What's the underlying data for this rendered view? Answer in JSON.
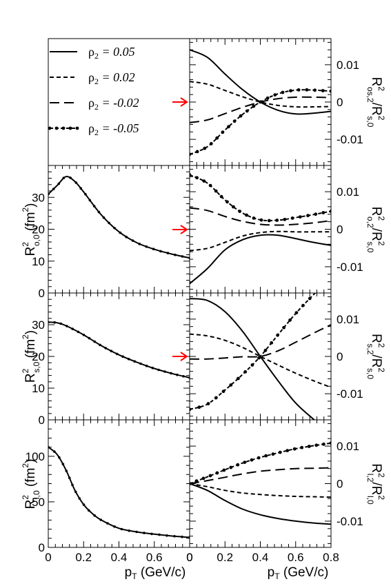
{
  "legend": [
    {
      "label": "ρ",
      "sub": "2",
      "value": " = 0.05",
      "dash": "solid"
    },
    {
      "label": "ρ",
      "sub": "2",
      "value": " = 0.02",
      "dash": "short"
    },
    {
      "label": "ρ",
      "sub": "2",
      "value": " = -0.02",
      "dash": "long"
    },
    {
      "label": "ρ",
      "sub": "2",
      "value": " = -0.05",
      "dash": "dashdot"
    }
  ],
  "xlabel": {
    "main": "p",
    "sub": "T",
    "rest": " (GeV/c)"
  },
  "left_ylabels": [
    {
      "main": "R",
      "sup": "2",
      "sub": "o,0",
      "unit": " (fm",
      "unit_sup": "2",
      "close": ")"
    },
    {
      "main": "R",
      "sup": "2",
      "sub": "s,0",
      "unit": " (fm",
      "unit_sup": "2",
      "close": ")"
    },
    {
      "main": "R",
      "sup": "2",
      "sub": "l,0",
      "unit": " (fm",
      "unit_sup": "2",
      "close": ")"
    }
  ],
  "right_ylabels": [
    {
      "num": "R",
      "num_sup": "2",
      "num_sub": "os,2",
      "den": "/R",
      "den_sup": "2",
      "den_sub": "s,0"
    },
    {
      "num": "R",
      "num_sup": "2",
      "num_sub": "o,2",
      "den": "/R",
      "den_sup": "2",
      "den_sub": "s,0"
    },
    {
      "num": "R",
      "num_sup": "2",
      "num_sub": "s,2",
      "den": "/R",
      "den_sup": "2",
      "den_sub": "s,0"
    },
    {
      "num": "R",
      "num_sup": "2",
      "num_sub": "l,2",
      "den": "/R",
      "den_sup": "2",
      "den_sub": "l,0"
    }
  ],
  "arrow_color": "#ff0000",
  "chart_data": [
    {
      "type": "line",
      "panel": "R2 o,0",
      "xlim": [
        0,
        0.8
      ],
      "ylim": [
        0,
        40
      ],
      "xticks": [
        "0",
        "0.2",
        "0.4",
        "0.6"
      ],
      "yticks": [
        "0",
        "10",
        "20",
        "30"
      ],
      "series": [
        {
          "x": [
            0,
            0.05,
            0.1,
            0.15,
            0.2,
            0.3,
            0.4,
            0.5,
            0.6,
            0.7,
            0.8
          ],
          "y": [
            31,
            33.7,
            36.5,
            35,
            31.7,
            24.5,
            19.2,
            15.8,
            13.7,
            12.2,
            11
          ]
        }
      ]
    },
    {
      "type": "line",
      "panel": "R2 s,0",
      "xlim": [
        0,
        0.8
      ],
      "ylim": [
        0,
        40
      ],
      "xticks": [
        "0",
        "0.2",
        "0.4",
        "0.6"
      ],
      "yticks": [
        "0",
        "10",
        "20",
        "30"
      ],
      "series": [
        {
          "x": [
            0,
            0.05,
            0.1,
            0.2,
            0.3,
            0.4,
            0.5,
            0.6,
            0.7,
            0.8
          ],
          "y": [
            30.8,
            30.6,
            29.7,
            26.8,
            23.4,
            20.5,
            18.2,
            16.2,
            14.6,
            13.3
          ]
        }
      ]
    },
    {
      "type": "line",
      "panel": "R2 l,0",
      "xlim": [
        0,
        0.8
      ],
      "ylim": [
        0,
        140
      ],
      "xticks": [
        "0",
        "0.2",
        "0.4",
        "0.6",
        "0"
      ],
      "yticks": [
        "0",
        "50",
        "100"
      ],
      "series": [
        {
          "x": [
            0,
            0.05,
            0.1,
            0.15,
            0.2,
            0.25,
            0.3,
            0.4,
            0.5,
            0.6,
            0.7,
            0.8
          ],
          "y": [
            110,
            102,
            85,
            63,
            47,
            37,
            30,
            21,
            17,
            14.5,
            12.5,
            11
          ]
        }
      ]
    },
    {
      "type": "line",
      "panel": "R2 os,2/R2 s,0",
      "xlim": [
        0,
        0.8
      ],
      "ylim": [
        -0.017,
        0.017
      ],
      "yticks": [
        "0.01",
        "0",
        "-0.01"
      ],
      "x": [
        0,
        0.1,
        0.2,
        0.3,
        0.4,
        0.5,
        0.6,
        0.7,
        0.8
      ],
      "series": [
        {
          "dash": "solid",
          "values": [
            0.014,
            0.012,
            0.0075,
            0.0033,
            0.0,
            -0.0022,
            -0.0032,
            -0.003,
            -0.0025
          ]
        },
        {
          "dash": "short",
          "values": [
            0.0055,
            0.0048,
            0.0031,
            0.0014,
            0.0,
            -0.0009,
            -0.0013,
            -0.0013,
            -0.0012
          ]
        },
        {
          "dash": "long",
          "values": [
            -0.0055,
            -0.0048,
            -0.0031,
            -0.0014,
            0.0,
            0.0009,
            0.0013,
            0.0013,
            0.0012
          ]
        },
        {
          "dash": "dashdot",
          "values": [
            -0.014,
            -0.012,
            -0.0075,
            -0.0033,
            0.0,
            0.0022,
            0.0032,
            0.0032,
            0.0029
          ]
        }
      ]
    },
    {
      "type": "line",
      "panel": "R2 o,2/R2 s,0",
      "xlim": [
        0,
        0.8
      ],
      "ylim": [
        -0.017,
        0.017
      ],
      "yticks": [
        "0.01",
        "0",
        "-0.01"
      ],
      "x": [
        0,
        0.1,
        0.2,
        0.3,
        0.4,
        0.5,
        0.6,
        0.7,
        0.8
      ],
      "series": [
        {
          "dash": "solid",
          "values": [
            -0.0145,
            -0.0105,
            -0.0055,
            -0.0028,
            -0.0016,
            -0.0016,
            -0.0025,
            -0.0035,
            -0.0043
          ]
        },
        {
          "dash": "short",
          "values": [
            -0.0057,
            -0.0051,
            -0.0035,
            -0.0018,
            -0.0009,
            -0.0006,
            -0.0007,
            -0.0007,
            -0.0007
          ]
        },
        {
          "dash": "long",
          "values": [
            0.0057,
            0.005,
            0.0034,
            0.0021,
            0.0013,
            0.0011,
            0.0013,
            0.0017,
            0.0023
          ]
        },
        {
          "dash": "dashdot",
          "values": [
            0.0145,
            0.0123,
            0.0078,
            0.0043,
            0.0025,
            0.0024,
            0.0031,
            0.0039,
            0.0048
          ]
        }
      ]
    },
    {
      "type": "line",
      "panel": "R2 s,2/R2 s,0",
      "xlim": [
        0,
        0.8
      ],
      "ylim": [
        -0.017,
        0.017
      ],
      "yticks": [
        "0.01",
        "0",
        "-0.01"
      ],
      "x": [
        0,
        0.1,
        0.2,
        0.3,
        0.4,
        0.5,
        0.6,
        0.7,
        0.8
      ],
      "series": [
        {
          "dash": "solid",
          "values": [
            0.0155,
            0.015,
            0.012,
            0.0067,
            0.0,
            -0.0065,
            -0.0125,
            -0.0168,
            -0.021
          ]
        },
        {
          "dash": "short",
          "values": [
            0.006,
            0.0055,
            0.0043,
            0.0024,
            0.0,
            -0.0023,
            -0.0045,
            -0.0065,
            -0.0083
          ]
        },
        {
          "dash": "long",
          "values": [
            -0.0007,
            -0.0007,
            -0.0004,
            -0.0001,
            0.0,
            0.0015,
            0.0038,
            0.0062,
            0.0085
          ]
        },
        {
          "dash": "dashdot",
          "values": [
            -0.0142,
            -0.0128,
            -0.009,
            -0.0048,
            0.0,
            0.0058,
            0.0115,
            0.0165,
            0.021
          ]
        }
      ]
    },
    {
      "type": "line",
      "panel": "R2 l,2/R2 l,0",
      "xlim": [
        0,
        0.8
      ],
      "ylim": [
        -0.017,
        0.017
      ],
      "xticks": [
        "0",
        "0.2",
        "0.4",
        "0.6",
        "0.8"
      ],
      "yticks": [
        "0.01",
        "0",
        "-0.01"
      ],
      "x": [
        0,
        0.1,
        0.2,
        0.3,
        0.4,
        0.5,
        0.6,
        0.7,
        0.8
      ],
      "series": [
        {
          "dash": "solid",
          "values": [
            0.0,
            -0.0018,
            -0.0045,
            -0.0068,
            -0.0083,
            -0.0093,
            -0.01,
            -0.0105,
            -0.0108
          ]
        },
        {
          "dash": "short",
          "values": [
            0.0,
            -0.0008,
            -0.0018,
            -0.0025,
            -0.0029,
            -0.0032,
            -0.0034,
            -0.0035,
            -0.0036
          ]
        },
        {
          "dash": "long",
          "values": [
            0.0,
            0.0008,
            0.0017,
            0.0026,
            0.0033,
            0.0037,
            0.004,
            0.0041,
            0.0042
          ]
        },
        {
          "dash": "dashdot",
          "values": [
            0.0,
            0.0018,
            0.0037,
            0.0055,
            0.007,
            0.0082,
            0.0093,
            0.0101,
            0.0108
          ]
        }
      ]
    }
  ]
}
